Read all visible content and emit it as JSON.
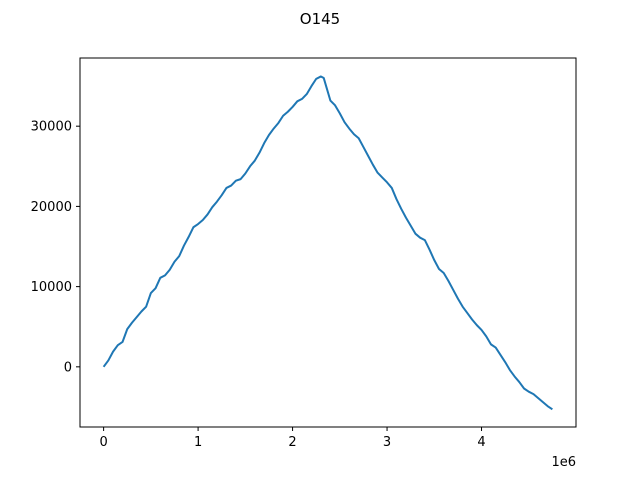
{
  "chart_data": {
    "type": "line",
    "title": "O145",
    "xlabel": "",
    "ylabel": "",
    "x_offset_text": "1e6",
    "xlim": [
      -250000,
      5000000
    ],
    "ylim": [
      -7500,
      38500
    ],
    "x_ticks": [
      0,
      1000000,
      2000000,
      3000000,
      4000000
    ],
    "x_tick_labels": [
      "0",
      "1",
      "2",
      "3",
      "4"
    ],
    "y_ticks": [
      0,
      10000,
      20000,
      30000
    ],
    "y_tick_labels": [
      "0",
      "10000",
      "20000",
      "30000"
    ],
    "grid": false,
    "legend": "none",
    "series": [
      {
        "color": "#1f77b4",
        "x": [
          0,
          50000,
          100000,
          150000,
          200000,
          250000,
          300000,
          350000,
          400000,
          450000,
          500000,
          550000,
          600000,
          650000,
          700000,
          750000,
          800000,
          850000,
          900000,
          950000,
          1000000,
          1050000,
          1100000,
          1150000,
          1200000,
          1250000,
          1300000,
          1350000,
          1400000,
          1450000,
          1500000,
          1550000,
          1600000,
          1650000,
          1700000,
          1750000,
          1800000,
          1850000,
          1900000,
          1950000,
          2000000,
          2050000,
          2100000,
          2150000,
          2200000,
          2250000,
          2300000,
          2330000,
          2360000,
          2400000,
          2450000,
          2500000,
          2550000,
          2600000,
          2650000,
          2700000,
          2750000,
          2800000,
          2850000,
          2900000,
          2950000,
          3000000,
          3050000,
          3100000,
          3150000,
          3200000,
          3250000,
          3300000,
          3350000,
          3400000,
          3450000,
          3500000,
          3550000,
          3600000,
          3650000,
          3700000,
          3750000,
          3800000,
          3850000,
          3900000,
          3950000,
          4000000,
          4050000,
          4100000,
          4150000,
          4200000,
          4250000,
          4300000,
          4350000,
          4400000,
          4450000,
          4500000,
          4550000,
          4600000,
          4650000,
          4700000,
          4750000
        ],
        "y": [
          0,
          800,
          1900,
          2700,
          3100,
          4700,
          5500,
          6200,
          6900,
          7500,
          9200,
          9800,
          11100,
          11400,
          12100,
          13100,
          13800,
          15100,
          16200,
          17400,
          17800,
          18300,
          19000,
          19900,
          20600,
          21400,
          22300,
          22600,
          23200,
          23400,
          24100,
          25000,
          25700,
          26700,
          27900,
          28900,
          29700,
          30400,
          31300,
          31800,
          32400,
          33100,
          33400,
          34000,
          35000,
          35900,
          36200,
          36000,
          34800,
          33200,
          32600,
          31600,
          30500,
          29700,
          29000,
          28500,
          27400,
          26300,
          25200,
          24200,
          23600,
          23000,
          22300,
          20900,
          19700,
          18600,
          17600,
          16600,
          16100,
          15800,
          14600,
          13300,
          12200,
          11700,
          10700,
          9600,
          8500,
          7500,
          6700,
          5900,
          5200,
          4600,
          3800,
          2800,
          2400,
          1500,
          600,
          -400,
          -1200,
          -1900,
          -2700,
          -3100,
          -3400,
          -3900,
          -4400,
          -4900,
          -5300
        ]
      }
    ]
  }
}
